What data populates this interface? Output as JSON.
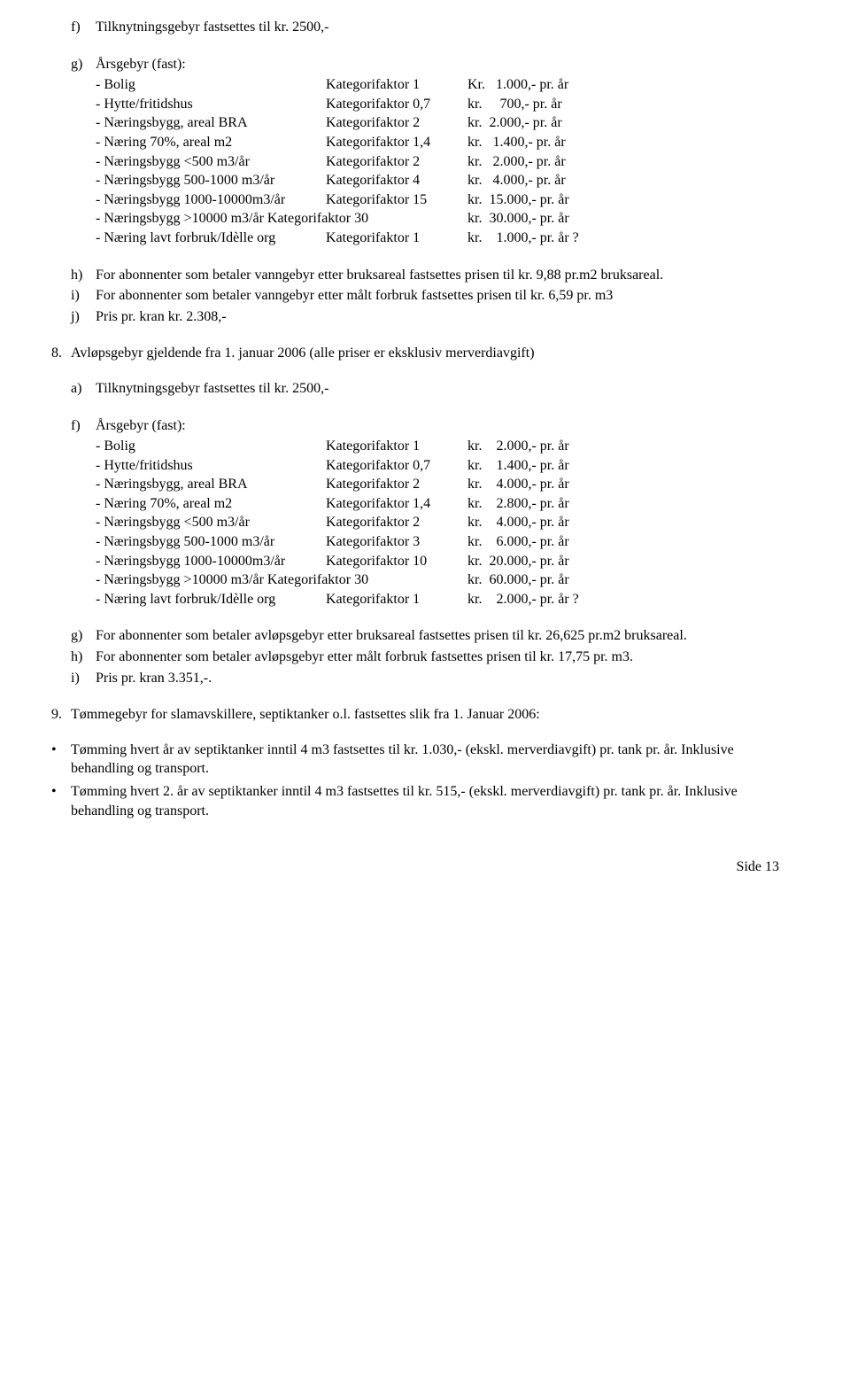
{
  "section_f": {
    "marker": "f)",
    "text": "Tilknytningsgebyr fastsettes til kr. 2500,-"
  },
  "section_g": {
    "marker": "g)",
    "title": "Årsgebyr (fast):",
    "rows": [
      {
        "label": "- Bolig",
        "factor": "Kategorifaktor 1",
        "price": "Kr.   1.000,- pr. år"
      },
      {
        "label": "- Hytte/fritidshus",
        "factor": "Kategorifaktor 0,7",
        "price": "kr.     700,- pr. år"
      },
      {
        "label": "- Næringsbygg, areal BRA",
        "factor": "Kategorifaktor 2",
        "price": "kr.  2.000,- pr. år"
      },
      {
        "label": "- Næring 70%, areal m2",
        "factor": "Kategorifaktor 1,4",
        "price": "kr.   1.400,- pr. år"
      },
      {
        "label": "- Næringsbygg <500 m3/år",
        "factor": "Kategorifaktor 2",
        "price": "kr.   2.000,- pr. år"
      },
      {
        "label": "- Næringsbygg 500-1000 m3/år",
        "factor": "Kategorifaktor 4",
        "price": "kr.   4.000,- pr. år"
      },
      {
        "label": "- Næringsbygg 1000-10000m3/år",
        "factor": "Kategorifaktor 15",
        "price": "kr.  15.000,- pr. år"
      },
      {
        "label": "- Næringsbygg >10000 m3/år Kategorifaktor 30",
        "factor": "",
        "price": "kr.  30.000,- pr. år"
      },
      {
        "label": "- Næring lavt forbruk/Idèlle org",
        "factor": "Kategorifaktor 1",
        "price": "kr.    1.000,- pr. år ?"
      }
    ]
  },
  "section_h": {
    "marker": "h)",
    "text": "For abonnenter som betaler vanngebyr etter bruksareal fastsettes prisen til kr. 9,88 pr.m2 bruksareal."
  },
  "section_i": {
    "marker": "i)",
    "text": "For abonnenter som betaler vanngebyr etter målt forbruk fastsettes prisen til kr. 6,59 pr. m3"
  },
  "section_j": {
    "marker": "j)",
    "text": "Pris pr. kran kr. 2.308,-"
  },
  "section_8": {
    "marker": "8.",
    "text": "Avløpsgebyr gjeldende fra 1. januar 2006  (alle priser er eksklusiv merverdiavgift)"
  },
  "section_8a": {
    "marker": "a)",
    "text": "Tilknytningsgebyr fastsettes til kr. 2500,-"
  },
  "section_8f": {
    "marker": "f)",
    "title": "Årsgebyr (fast):",
    "rows": [
      {
        "label": "- Bolig",
        "factor": "Kategorifaktor 1",
        "price": "kr.    2.000,- pr. år"
      },
      {
        "label": "- Hytte/fritidshus",
        "factor": "Kategorifaktor 0,7",
        "price": "kr.    1.400,- pr. år"
      },
      {
        "label": "- Næringsbygg, areal BRA",
        "factor": "Kategorifaktor 2",
        "price": "kr.    4.000,- pr. år"
      },
      {
        "label": "- Næring 70%, areal m2",
        "factor": "Kategorifaktor 1,4",
        "price": "kr.    2.800,- pr. år"
      },
      {
        "label": "- Næringsbygg <500 m3/år",
        "factor": "Kategorifaktor 2",
        "price": "kr.    4.000,- pr. år"
      },
      {
        "label": "- Næringsbygg 500-1000 m3/år",
        "factor": "Kategorifaktor 3",
        "price": "kr.    6.000,- pr. år"
      },
      {
        "label": "- Næringsbygg 1000-10000m3/år",
        "factor": "Kategorifaktor 10",
        "price": "kr.  20.000,- pr. år"
      },
      {
        "label": "- Næringsbygg >10000 m3/år Kategorifaktor 30",
        "factor": "",
        "price": "kr.  60.000,- pr. år"
      },
      {
        "label": "- Næring lavt forbruk/Idèlle org",
        "factor": "Kategorifaktor 1",
        "price": "kr.    2.000,- pr. år ?"
      }
    ]
  },
  "section_8g": {
    "marker": "g)",
    "text": "For abonnenter som betaler avløpsgebyr etter bruksareal fastsettes prisen til kr. 26,625 pr.m2 bruksareal."
  },
  "section_8h": {
    "marker": "h)",
    "text": "For abonnenter som betaler avløpsgebyr etter målt forbruk fastsettes prisen til kr. 17,75 pr. m3."
  },
  "section_8i": {
    "marker": "i)",
    "text": "Pris pr. kran 3.351,-."
  },
  "section_9": {
    "marker": "9.",
    "text": "Tømmegebyr for slamavskillere, septiktanker o.l. fastsettes slik fra 1. Januar 2006:"
  },
  "bullet1": "Tømming hvert år av septiktanker inntil 4 m3 fastsettes til kr. 1.030,- (ekskl. merverdiavgift) pr. tank pr. år. Inklusive behandling og transport.",
  "bullet2": "Tømming hvert 2. år av septiktanker inntil 4 m3 fastsettes til kr. 515,- (ekskl. merverdiavgift) pr. tank pr. år. Inklusive behandling og transport.",
  "footer": "Side 13"
}
